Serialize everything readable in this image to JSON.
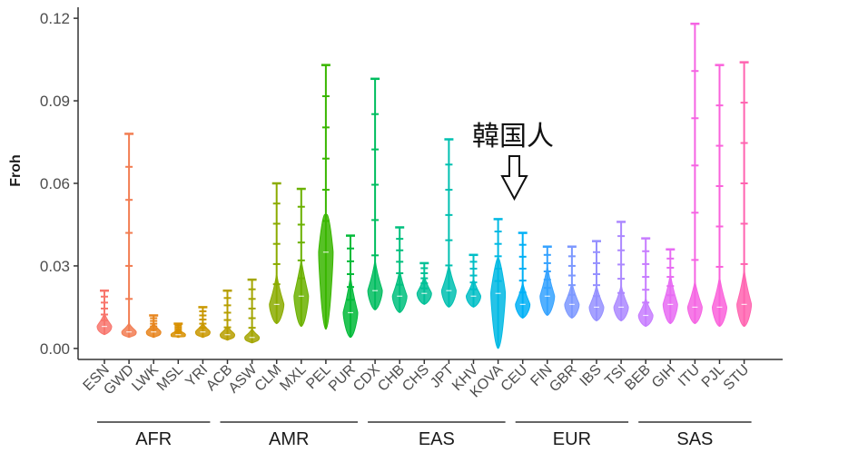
{
  "chart_data": {
    "type": "violin",
    "title": "",
    "xlabel": "",
    "ylabel": "Froh",
    "ylim": [
      -0.004,
      0.124
    ],
    "yticks": [
      "0.00",
      "0.03",
      "0.06",
      "0.09",
      "0.12"
    ],
    "ytick_values": [
      0.0,
      0.03,
      0.06,
      0.09,
      0.12
    ],
    "grid": false,
    "annotation": {
      "text": "韓国人",
      "target": "KOVA",
      "arrow": "down"
    },
    "groups": [
      {
        "name": "AFR",
        "members": [
          "ESN",
          "GWD",
          "LWK",
          "MSL",
          "YRI"
        ]
      },
      {
        "name": "AMR",
        "members": [
          "ACB",
          "ASW",
          "CLM",
          "MXL",
          "PEL",
          "PUR"
        ]
      },
      {
        "name": "EAS",
        "members": [
          "CDX",
          "CHB",
          "CHS",
          "JPT",
          "KHV",
          "KOVA"
        ]
      },
      {
        "name": "EUR",
        "members": [
          "CEU",
          "FIN",
          "GBR",
          "IBS",
          "TSI"
        ]
      },
      {
        "name": "SAS",
        "members": [
          "BEB",
          "GIH",
          "ITU",
          "PJL",
          "STU"
        ]
      }
    ],
    "series": [
      {
        "name": "ESN",
        "color": "#f8766d",
        "min": 0.005,
        "max": 0.021,
        "median": 0.008
      },
      {
        "name": "GWD",
        "color": "#f27d52",
        "min": 0.004,
        "max": 0.078,
        "median": 0.006
      },
      {
        "name": "LWK",
        "color": "#e7851e",
        "min": 0.004,
        "max": 0.012,
        "median": 0.006
      },
      {
        "name": "MSL",
        "color": "#d89000",
        "min": 0.004,
        "max": 0.009,
        "median": 0.005
      },
      {
        "name": "YRI",
        "color": "#c99800",
        "min": 0.004,
        "max": 0.015,
        "median": 0.006
      },
      {
        "name": "ACB",
        "color": "#b79f00",
        "min": 0.003,
        "max": 0.021,
        "median": 0.005
      },
      {
        "name": "ASW",
        "color": "#a3a500",
        "min": 0.002,
        "max": 0.025,
        "median": 0.004
      },
      {
        "name": "CLM",
        "color": "#8bab00",
        "min": 0.009,
        "max": 0.06,
        "median": 0.016
      },
      {
        "name": "MXL",
        "color": "#6bb100",
        "min": 0.008,
        "max": 0.058,
        "median": 0.019
      },
      {
        "name": "PEL",
        "color": "#39b600",
        "min": 0.007,
        "max": 0.103,
        "median": 0.035
      },
      {
        "name": "PUR",
        "color": "#00ba38",
        "min": 0.004,
        "max": 0.041,
        "median": 0.013
      },
      {
        "name": "CDX",
        "color": "#00bd5f",
        "min": 0.014,
        "max": 0.098,
        "median": 0.021
      },
      {
        "name": "CHB",
        "color": "#00bf7d",
        "min": 0.013,
        "max": 0.044,
        "median": 0.019
      },
      {
        "name": "CHS",
        "color": "#00c097",
        "min": 0.016,
        "max": 0.031,
        "median": 0.02
      },
      {
        "name": "JPT",
        "color": "#00c0b0",
        "min": 0.015,
        "max": 0.076,
        "median": 0.021
      },
      {
        "name": "KHV",
        "color": "#00bec6",
        "min": 0.015,
        "max": 0.034,
        "median": 0.019
      },
      {
        "name": "KOVA",
        "color": "#00b9e3",
        "min": 0.0,
        "max": 0.047,
        "median": 0.02
      },
      {
        "name": "CEU",
        "color": "#00b0f6",
        "min": 0.011,
        "max": 0.042,
        "median": 0.016
      },
      {
        "name": "FIN",
        "color": "#35a2ff",
        "min": 0.012,
        "max": 0.037,
        "median": 0.019
      },
      {
        "name": "GBR",
        "color": "#7c98ff",
        "min": 0.011,
        "max": 0.037,
        "median": 0.016
      },
      {
        "name": "IBS",
        "color": "#9590ff",
        "min": 0.01,
        "max": 0.039,
        "median": 0.015
      },
      {
        "name": "TSI",
        "color": "#ac88ff",
        "min": 0.01,
        "max": 0.046,
        "median": 0.015
      },
      {
        "name": "BEB",
        "color": "#c77cff",
        "min": 0.008,
        "max": 0.04,
        "median": 0.012
      },
      {
        "name": "GIH",
        "color": "#e76bf3",
        "min": 0.009,
        "max": 0.036,
        "median": 0.016
      },
      {
        "name": "ITU",
        "color": "#f564e3",
        "min": 0.009,
        "max": 0.118,
        "median": 0.015
      },
      {
        "name": "PJL",
        "color": "#fa62db",
        "min": 0.008,
        "max": 0.103,
        "median": 0.015
      },
      {
        "name": "STU",
        "color": "#ff64b0",
        "min": 0.008,
        "max": 0.104,
        "median": 0.016
      }
    ]
  }
}
